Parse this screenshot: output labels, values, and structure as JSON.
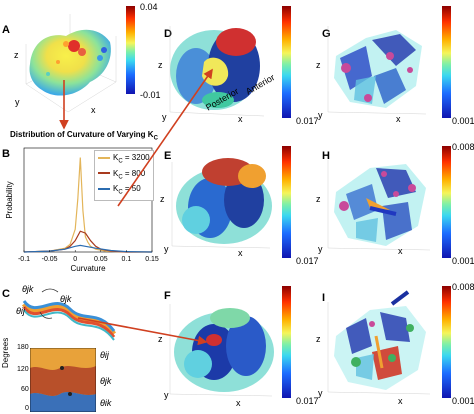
{
  "panels": {
    "A": {
      "letter": "A",
      "axes": {
        "z": "z",
        "y": "y",
        "x": "x"
      },
      "cbar": {
        "top": "0.04",
        "bottom": "-0.01"
      }
    },
    "B": {
      "letter": "B"
    },
    "C": {
      "letter": "C",
      "angles": {
        "ik": "θjk",
        "jk": "θjk",
        "ij": "θij"
      },
      "strip": {
        "ylabel": "Degrees",
        "labels": [
          "θij",
          "θjk",
          "θik"
        ],
        "ticks": [
          "180",
          "120",
          "60",
          "0"
        ]
      }
    },
    "D": {
      "letter": "D",
      "axes": {
        "z": "z",
        "y": "y",
        "x": "x"
      },
      "posterior": "Posterior",
      "anterior": "Anterior",
      "cbar": {
        "top": "",
        "bottom": "0.017"
      }
    },
    "E": {
      "letter": "E",
      "axes": {
        "z": "z",
        "y": "y",
        "x": "x"
      },
      "cbar": {
        "top": "",
        "bottom": "0.017"
      }
    },
    "F": {
      "letter": "F",
      "axes": {
        "z": "z",
        "y": "y",
        "x": "x"
      },
      "cbar": {
        "top": "",
        "bottom": "0.017"
      }
    },
    "G": {
      "letter": "G",
      "axes": {
        "z": "z",
        "y": "y",
        "x": "x"
      },
      "cbar": {
        "top": "",
        "bottom": "0.001"
      }
    },
    "H": {
      "letter": "H",
      "axes": {
        "z": "z",
        "y": "y",
        "x": "x"
      },
      "cbar": {
        "top": "0.008",
        "bottom": "0.001"
      }
    },
    "I": {
      "letter": "I",
      "axes": {
        "z": "z",
        "y": "y",
        "x": "x"
      },
      "cbar": {
        "top": "0.008",
        "bottom": "0.001"
      }
    }
  },
  "chart_data": {
    "type": "line",
    "title": "Distribution of Curvature of Varying K",
    "title_sub": "C",
    "xlabel": "Curvature",
    "ylabel": "Probability",
    "xlim": [
      -0.1,
      0.15
    ],
    "ylim": [
      0,
      0.55
    ],
    "xticks": [
      "-0.1",
      "-0.05",
      "0",
      "0.05",
      "0.1",
      "0.15"
    ],
    "series": [
      {
        "name": "K_C = 3200",
        "legend": "K",
        "legend_sub": "C",
        "legend_val": " = 3200",
        "color": "#e3b55a",
        "x": [
          -0.1,
          -0.05,
          -0.02,
          -0.01,
          0,
          0.005,
          0.01,
          0.015,
          0.02,
          0.025,
          0.03,
          0.04,
          0.06,
          0.1,
          0.15
        ],
        "y": [
          0,
          0.005,
          0.02,
          0.04,
          0.12,
          0.28,
          0.5,
          0.22,
          0.08,
          0.05,
          0.03,
          0.015,
          0.005,
          0,
          0
        ]
      },
      {
        "name": "K_C = 800",
        "legend": "K",
        "legend_sub": "C",
        "legend_val": " = 800",
        "color": "#a83a1e",
        "x": [
          -0.1,
          -0.05,
          -0.02,
          -0.01,
          0,
          0.01,
          0.02,
          0.03,
          0.04,
          0.05,
          0.07,
          0.1,
          0.15
        ],
        "y": [
          0,
          0.005,
          0.015,
          0.03,
          0.06,
          0.11,
          0.1,
          0.06,
          0.03,
          0.015,
          0.005,
          0,
          0
        ]
      },
      {
        "name": "K_C = 50",
        "legend": "K",
        "legend_sub": "C",
        "legend_val": " = 50",
        "color": "#2b6cb0",
        "x": [
          -0.1,
          -0.05,
          -0.02,
          0,
          0.01,
          0.02,
          0.04,
          0.07,
          0.1,
          0.15
        ],
        "y": [
          0,
          0.005,
          0.015,
          0.03,
          0.035,
          0.03,
          0.02,
          0.008,
          0.002,
          0
        ]
      }
    ]
  }
}
